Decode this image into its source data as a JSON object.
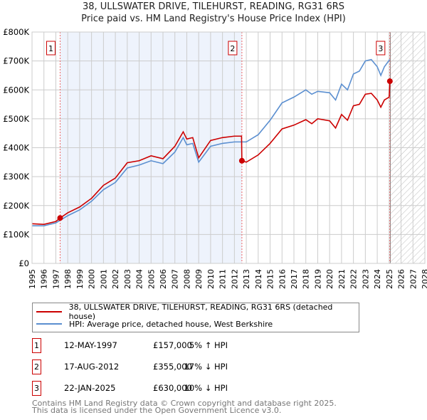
{
  "title": "38, ULLSWATER DRIVE, TILEHURST, READING, RG31 6RS",
  "subtitle": "Price paid vs. HM Land Registry's House Price Index (HPI)",
  "chart_data": {
    "type": "line",
    "xlim": [
      1995,
      2028
    ],
    "ylim": [
      0,
      800000
    ],
    "y_ticks": [
      {
        "v": 0,
        "l": "£0"
      },
      {
        "v": 100000,
        "l": "£100K"
      },
      {
        "v": 200000,
        "l": "£200K"
      },
      {
        "v": 300000,
        "l": "£300K"
      },
      {
        "v": 400000,
        "l": "£400K"
      },
      {
        "v": 500000,
        "l": "£500K"
      },
      {
        "v": 600000,
        "l": "£600K"
      },
      {
        "v": 700000,
        "l": "£700K"
      },
      {
        "v": 800000,
        "l": "£800K"
      }
    ],
    "x_ticks": [
      1995,
      1996,
      1997,
      1998,
      1999,
      2000,
      2001,
      2002,
      2003,
      2004,
      2005,
      2006,
      2007,
      2008,
      2009,
      2010,
      2011,
      2012,
      2013,
      2014,
      2015,
      2016,
      2017,
      2018,
      2019,
      2020,
      2021,
      2022,
      2023,
      2024,
      2025,
      2026,
      2027,
      2028
    ],
    "shaded_range": [
      1997.36,
      2012.63
    ],
    "forecast_hatch_from": 2025.1,
    "series": [
      {
        "name": "38, ULLSWATER DRIVE, TILEHURST, READING, RG31 6RS (detached house)",
        "color": "#cc0000",
        "x": [
          1995,
          1996,
          1997,
          1997.36,
          1998,
          1999,
          2000,
          2001,
          2002,
          2003,
          2004,
          2005,
          2006,
          2007,
          2007.7,
          2008,
          2008.5,
          2009,
          2010,
          2011,
          2012,
          2012.6,
          2012.63,
          2013,
          2014,
          2015,
          2016,
          2017,
          2018,
          2018.5,
          2019,
          2020,
          2020.5,
          2021,
          2021.5,
          2022,
          2022.5,
          2023,
          2023.5,
          2024,
          2024.3,
          2024.6,
          2025,
          2025.06
        ],
        "y": [
          137000,
          135000,
          145000,
          157000,
          175000,
          195000,
          225000,
          270000,
          295000,
          348000,
          355000,
          372000,
          362000,
          405000,
          455000,
          430000,
          435000,
          365000,
          425000,
          435000,
          440000,
          440000,
          355000,
          350000,
          375000,
          415000,
          465000,
          478000,
          497000,
          483000,
          500000,
          493000,
          468000,
          515000,
          495000,
          545000,
          550000,
          585000,
          588000,
          565000,
          540000,
          565000,
          575000,
          630000
        ]
      },
      {
        "name": "HPI: Average price, detached house, West Berkshire",
        "color": "#5b8fd0",
        "x": [
          1995,
          1996,
          1997,
          1998,
          1999,
          2000,
          2001,
          2002,
          2003,
          2004,
          2005,
          2006,
          2007,
          2007.7,
          2008,
          2008.5,
          2009,
          2010,
          2011,
          2012,
          2012.6,
          2013,
          2014,
          2015,
          2016,
          2017,
          2018,
          2018.5,
          2019,
          2020,
          2020.5,
          2021,
          2021.5,
          2022,
          2022.5,
          2023,
          2023.5,
          2024,
          2024.3,
          2024.6,
          2025.05
        ],
        "y": [
          130000,
          130000,
          140000,
          165000,
          185000,
          215000,
          255000,
          280000,
          330000,
          340000,
          355000,
          345000,
          385000,
          435000,
          410000,
          415000,
          350000,
          405000,
          415000,
          420000,
          420000,
          420000,
          445000,
          495000,
          555000,
          575000,
          600000,
          585000,
          595000,
          590000,
          565000,
          620000,
          600000,
          655000,
          665000,
          700000,
          705000,
          680000,
          650000,
          680000,
          705000
        ]
      }
    ],
    "sales": [
      {
        "n": "1",
        "x": 1997.36,
        "y": 157000
      },
      {
        "n": "2",
        "x": 2012.63,
        "y": 355000
      },
      {
        "n": "3",
        "x": 2025.06,
        "y": 630000
      }
    ]
  },
  "legend": [
    "38, ULLSWATER DRIVE, TILEHURST, READING, RG31 6RS (detached house)",
    "HPI: Average price, detached house, West Berkshire"
  ],
  "transactions": [
    {
      "n": "1",
      "date": "12-MAY-1997",
      "price": "£157,000",
      "hpi": "5% ↑ HPI"
    },
    {
      "n": "2",
      "date": "17-AUG-2012",
      "price": "£355,000",
      "hpi": "17% ↓ HPI"
    },
    {
      "n": "3",
      "date": "22-JAN-2025",
      "price": "£630,000",
      "hpi": "10% ↓ HPI"
    }
  ],
  "footer": [
    "Contains HM Land Registry data © Crown copyright and database right 2025.",
    "This data is licensed under the Open Government Licence v3.0."
  ]
}
